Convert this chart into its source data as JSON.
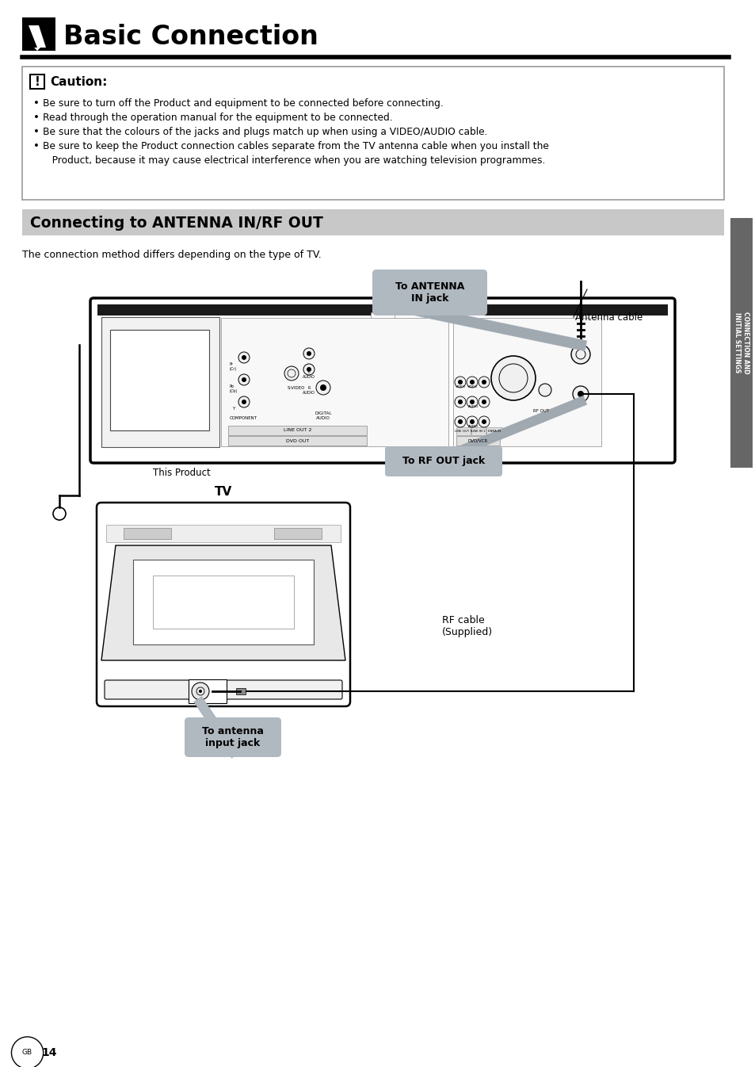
{
  "title": "Basic Connection",
  "caution_title": "Caution:",
  "caution_bullets": [
    "Be sure to turn off the Product and equipment to be connected before connecting.",
    "Read through the operation manual for the equipment to be connected.",
    "Be sure that the colours of the jacks and plugs match up when using a VIDEO/AUDIO cable.",
    "Be sure to keep the Product connection cables separate from the TV antenna cable when you install the"
  ],
  "caution_bullet4_line2": "   Product, because it may cause electrical interference when you are watching television programmes.",
  "section_title": "Connecting to ANTENNA IN/RF OUT",
  "section_desc": "The connection method differs depending on the type of TV.",
  "label_antenna_in": "To ANTENNA\nIN jack",
  "label_antenna_cable": "Antenna cable",
  "label_rf_out": "To RF OUT jack",
  "label_this_product": "This Product",
  "label_tv": "TV",
  "label_rf_cable": "RF cable\n(Supplied)",
  "label_antenna_input": "To antenna\ninput jack",
  "sidebar_text1": "CONNECTION AND",
  "sidebar_text2": "INITIAL SETTINGS",
  "page_num": "14",
  "bg_color": "#ffffff",
  "section_bg": "#c8c8c8",
  "sidebar_bg": "#666666",
  "bubble_bg": "#b0b8c0"
}
